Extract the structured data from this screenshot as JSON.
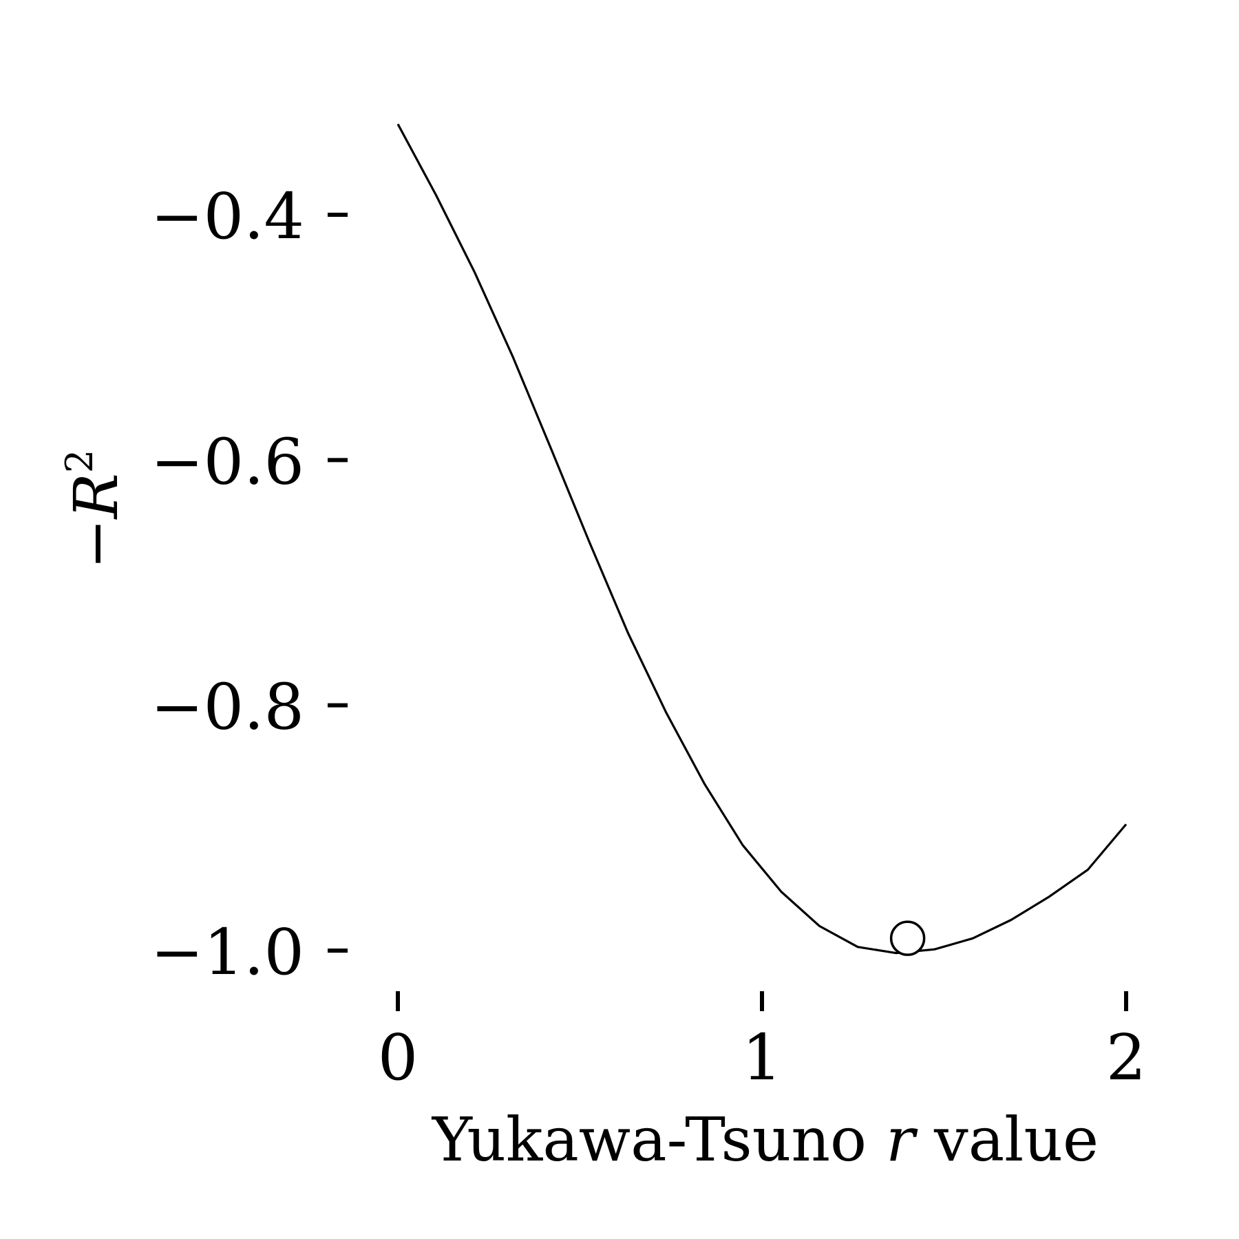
{
  "chart_data": {
    "type": "line",
    "xlabel": {
      "prefix": "Yukawa-Tsuno ",
      "symbol": "r",
      "suffix": " value"
    },
    "ylabel": {
      "sign": "−",
      "symbol": "R",
      "superscript": "2"
    },
    "xlim": [
      0,
      2
    ],
    "ylim": [
      -1.0,
      -0.4
    ],
    "x_ticks": [
      0,
      1,
      2
    ],
    "x_tick_labels": [
      "0",
      "1",
      "2"
    ],
    "y_ticks": [
      -0.4,
      -0.6,
      -0.8,
      -1.0
    ],
    "y_tick_labels": [
      "−0.4",
      "−0.6",
      "−0.8",
      "−1.0"
    ],
    "grid": false,
    "series": [
      {
        "x": [
          0.0,
          0.105,
          0.211,
          0.316,
          0.421,
          0.526,
          0.632,
          0.737,
          0.842,
          0.947,
          1.053,
          1.158,
          1.263,
          1.368,
          1.474,
          1.579,
          1.684,
          1.789,
          1.895,
          2.0
        ],
        "y": [
          -0.326,
          -0.384,
          -0.447,
          -0.516,
          -0.591,
          -0.667,
          -0.741,
          -0.806,
          -0.864,
          -0.914,
          -0.952,
          -0.98,
          -0.997,
          -1.002,
          -0.999,
          -0.99,
          -0.975,
          -0.956,
          -0.934,
          -0.897
        ]
      }
    ],
    "highlight_point": {
      "x": 1.4,
      "y": -0.99
    },
    "colors": {
      "line": "#000000",
      "marker_fill": "#ffffff",
      "marker_edge": "#000000",
      "text": "#000000"
    }
  }
}
